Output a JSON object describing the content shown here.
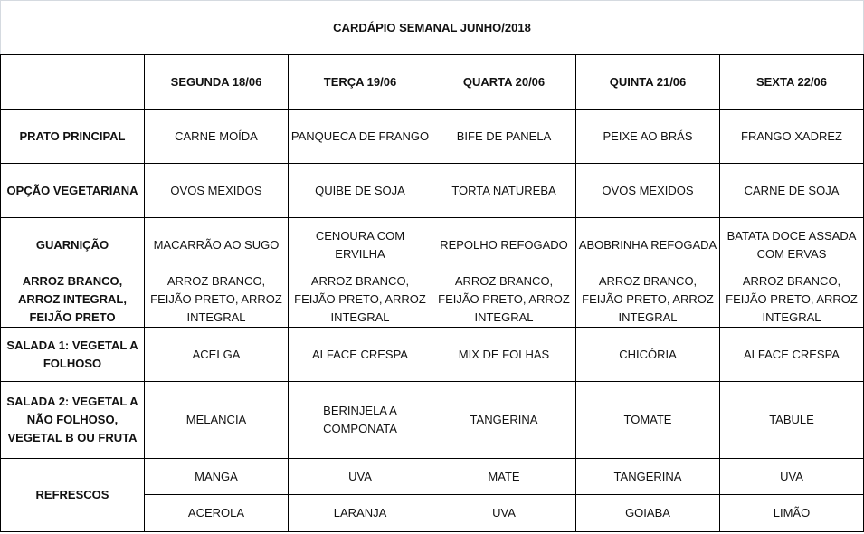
{
  "title": "CARDÁPIO SEMANAL JUNHO/2018",
  "days": [
    "SEGUNDA  18/06",
    "TERÇA 19/06",
    "QUARTA 20/06",
    "QUINTA 21/06",
    "SEXTA 22/06"
  ],
  "rows": [
    {
      "label": "PRATO PRINCIPAL",
      "cells": [
        "CARNE MOÍDA",
        "PANQUECA DE FRANGO",
        "BIFE DE PANELA",
        "PEIXE AO BRÁS",
        "FRANGO XADREZ"
      ]
    },
    {
      "label": "OPÇÃO VEGETARIANA",
      "cells": [
        "OVOS MEXIDOS",
        "QUIBE DE SOJA",
        "TORTA NATUREBA",
        "OVOS MEXIDOS",
        "CARNE DE SOJA"
      ]
    },
    {
      "label": "GUARNIÇÃO",
      "cells": [
        "MACARRÃO AO SUGO",
        "CENOURA COM ERVILHA",
        "REPOLHO REFOGADO",
        "ABOBRINHA REFOGADA",
        "BATATA DOCE ASSADA COM ERVAS"
      ]
    },
    {
      "label": "ARROZ BRANCO, ARROZ INTEGRAL, FEIJÃO PRETO",
      "cells": [
        "ARROZ BRANCO, FEIJÃO PRETO, ARROZ INTEGRAL",
        "ARROZ BRANCO, FEIJÃO PRETO, ARROZ INTEGRAL",
        "ARROZ BRANCO, FEIJÃO PRETO, ARROZ INTEGRAL",
        "ARROZ BRANCO, FEIJÃO PRETO, ARROZ INTEGRAL",
        "ARROZ BRANCO, FEIJÃO PRETO, ARROZ INTEGRAL"
      ]
    },
    {
      "label": "SALADA 1: VEGETAL A FOLHOSO",
      "cells": [
        "ACELGA",
        "ALFACE CRESPA",
        "MIX DE FOLHAS",
        "CHICÓRIA",
        "ALFACE CRESPA"
      ]
    },
    {
      "label": "SALADA 2: VEGETAL A NÃO FOLHOSO, VEGETAL B OU FRUTA",
      "cells": [
        "MELANCIA",
        "BERINJELA A COMPONATA",
        "TANGERINA",
        "TOMATE",
        "TABULE"
      ]
    }
  ],
  "refrescos": {
    "label": "REFRESCOS",
    "row1": [
      "MANGA",
      "UVA",
      "MATE",
      "TANGERINA",
      "UVA"
    ],
    "row2": [
      "ACEROLA",
      "LARANJA",
      "UVA",
      "GOIABA",
      "LIMÃO"
    ]
  }
}
